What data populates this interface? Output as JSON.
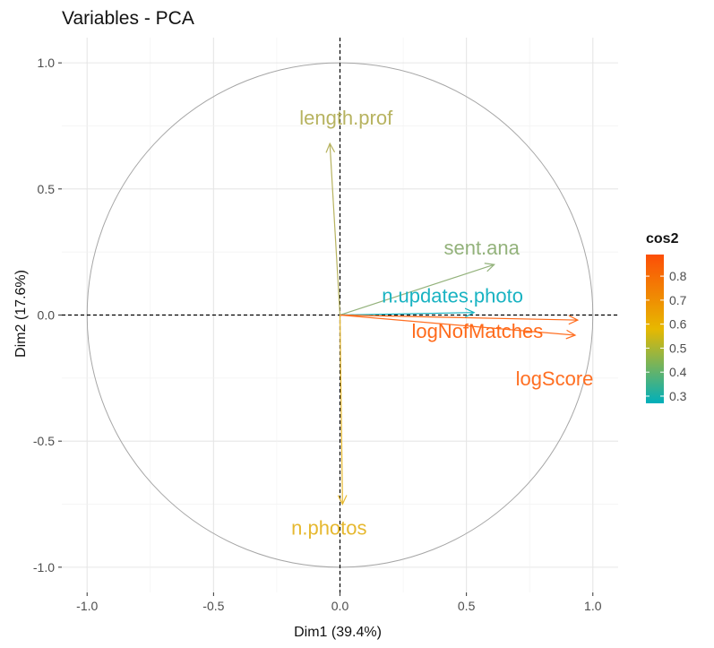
{
  "chart_data": {
    "type": "scatter",
    "subtype": "pca-variable-correlation-circle",
    "title": "Variables - PCA",
    "xlabel": "Dim1 (39.4%)",
    "ylabel": "Dim2 (17.6%)",
    "xlim": [
      -1.1,
      1.1
    ],
    "ylim": [
      -1.1,
      1.1
    ],
    "x_ticks": [
      -1.0,
      -0.5,
      0.0,
      0.5,
      1.0
    ],
    "x_tick_labels": [
      "-1.0",
      "-0.5",
      "0.0",
      "0.5",
      "1.0"
    ],
    "y_ticks": [
      -1.0,
      -0.5,
      0.0,
      0.5,
      1.0
    ],
    "y_tick_labels": [
      "-1.0",
      "-0.5",
      "0.0",
      "0.5",
      "1.0"
    ],
    "grid": true,
    "unit_circle": true,
    "reference_lines": {
      "x": 0,
      "y": 0,
      "style": "dashed"
    },
    "variables": [
      {
        "name": "length.prof",
        "x": -0.04,
        "y": 0.68,
        "cos2": 0.47,
        "color": "#b7b360"
      },
      {
        "name": "sent.ana",
        "x": 0.61,
        "y": 0.2,
        "cos2": 0.41,
        "color": "#93b27b"
      },
      {
        "name": "n.updates.photo",
        "x": 0.53,
        "y": 0.01,
        "cos2": 0.28,
        "color": "#19b3c2"
      },
      {
        "name": "logNofMatches",
        "x": 0.94,
        "y": -0.02,
        "cos2": 0.89,
        "color": "#ff6a1a"
      },
      {
        "name": "logScore",
        "x": 0.93,
        "y": -0.08,
        "cos2": 0.87,
        "color": "#ff6f22"
      },
      {
        "name": "n.photos",
        "x": 0.01,
        "y": -0.75,
        "cos2": 0.56,
        "color": "#e6b82f"
      }
    ],
    "legend": {
      "title": "cos2",
      "position": "right",
      "gradient_colors": [
        "#00afbb",
        "#e7b800",
        "#fc4e07"
      ],
      "range": [
        0.27,
        0.89
      ],
      "ticks": [
        0.3,
        0.4,
        0.5,
        0.6,
        0.7,
        0.8
      ],
      "tick_labels": [
        "0.3",
        "0.4",
        "0.5",
        "0.6",
        "0.7",
        "0.8"
      ]
    }
  }
}
